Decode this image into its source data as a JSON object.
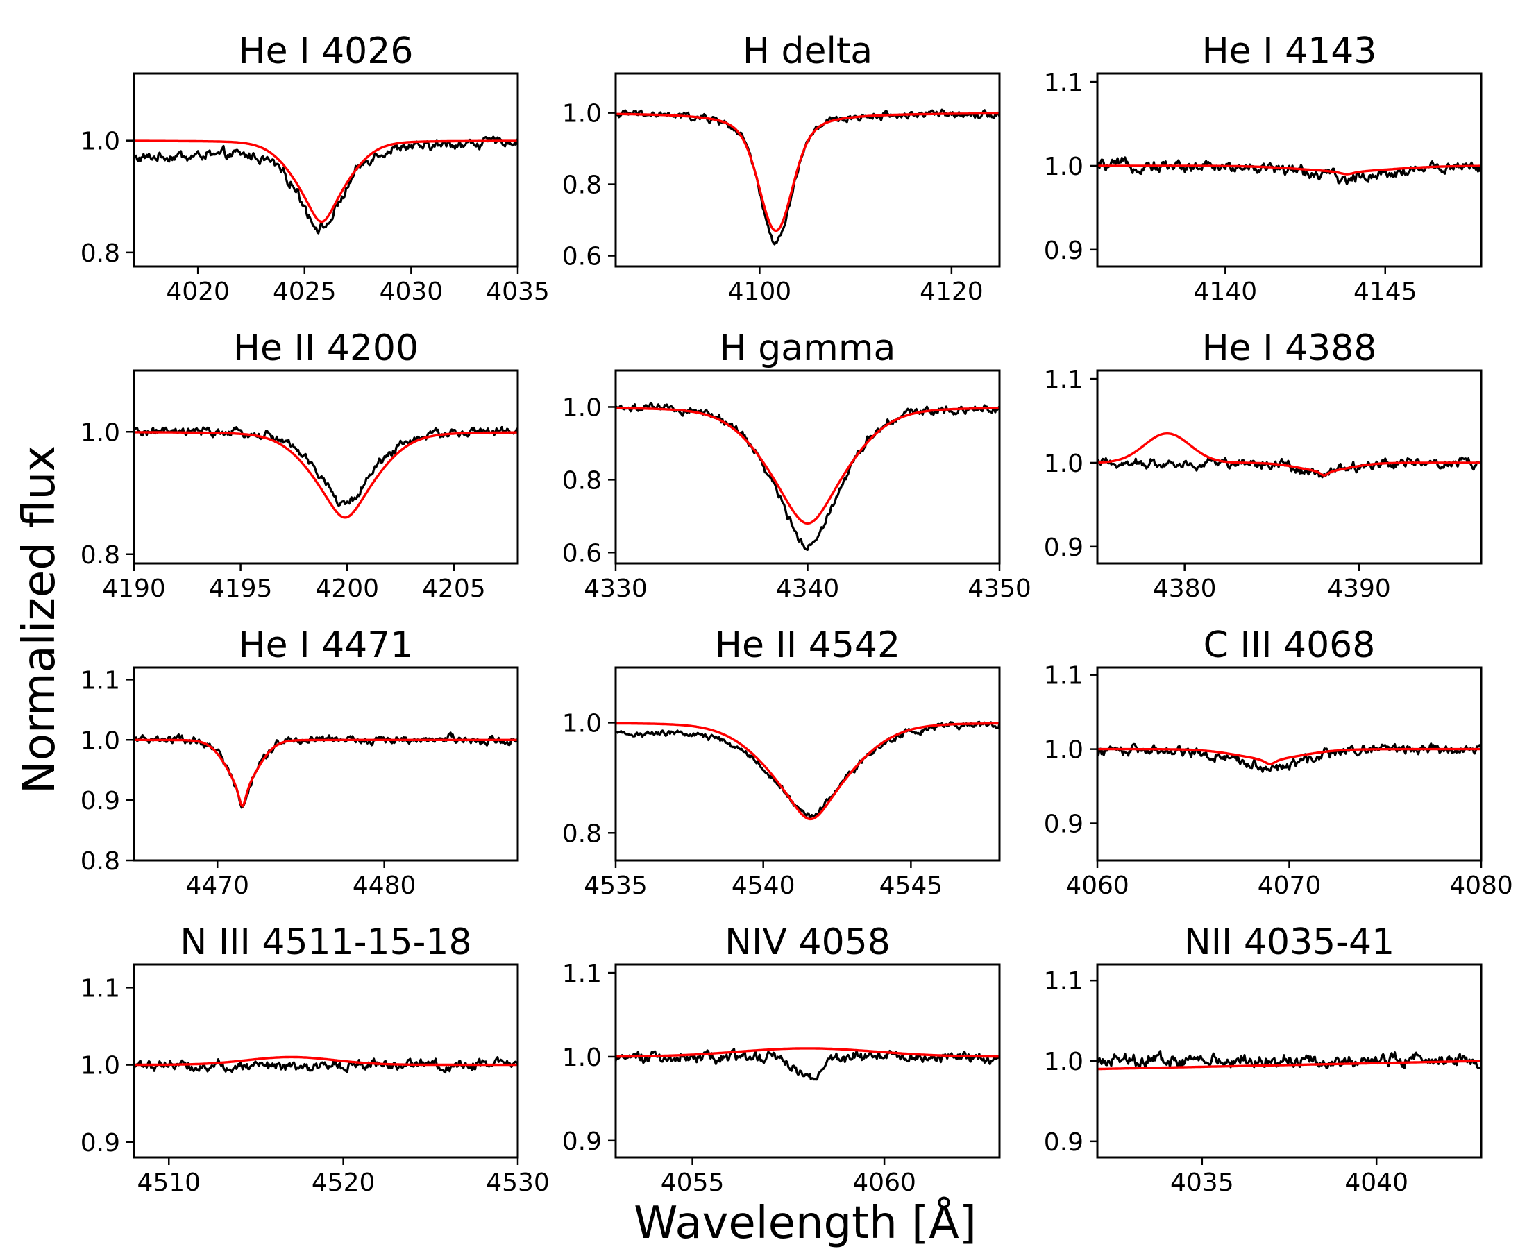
{
  "figure": {
    "xlabel": "Wavelength [Å]",
    "ylabel": "Normalized flux"
  },
  "colors": {
    "observed": "#000000",
    "model": "#ff0000",
    "axes": "#000000"
  },
  "chart_data": [
    {
      "type": "line",
      "title": "He I 4026",
      "xlim": [
        4017,
        4035
      ],
      "ylim": [
        0.775,
        1.12
      ],
      "xticks": [
        4020,
        4025,
        4030,
        4035
      ],
      "yticks": [
        0.8,
        1.0
      ],
      "line_center": 4025.8,
      "observed": {
        "kind": "absorption",
        "depth": 0.14,
        "sigma": 1.1,
        "gamma": 1.1,
        "noise": 0.008,
        "slope": 0.03
      },
      "model": {
        "kind": "absorption",
        "depth": 0.145,
        "sigma": 1.3,
        "gamma": 0.8
      }
    },
    {
      "type": "line",
      "title": "H delta",
      "xlim": [
        4085,
        4125
      ],
      "ylim": [
        0.57,
        1.11
      ],
      "xticks": [
        4100,
        4120
      ],
      "yticks": [
        0.6,
        0.8,
        1.0
      ],
      "line_center": 4101.7,
      "observed": {
        "kind": "absorption",
        "depth": 0.36,
        "sigma": 1.6,
        "gamma": 2.6,
        "noise": 0.009,
        "slope": 0
      },
      "model": {
        "kind": "absorption",
        "depth": 0.33,
        "sigma": 1.7,
        "gamma": 2.6
      }
    },
    {
      "type": "line",
      "title": "He I 4143",
      "xlim": [
        4136,
        4148
      ],
      "ylim": [
        0.88,
        1.11
      ],
      "xticks": [
        4140,
        4145
      ],
      "yticks": [
        0.9,
        1.0,
        1.1
      ],
      "line_center": 4143.8,
      "observed": {
        "kind": "absorption",
        "depth": 0.016,
        "sigma": 1.6,
        "gamma": 0.5,
        "noise": 0.006,
        "slope": 0
      },
      "model": {
        "kind": "absorption",
        "depth": 0.01,
        "sigma": 1.5,
        "gamma": 0.3
      }
    },
    {
      "type": "line",
      "title": "He II 4200",
      "xlim": [
        4190,
        4208
      ],
      "ylim": [
        0.785,
        1.1
      ],
      "xticks": [
        4190,
        4195,
        4200,
        4205
      ],
      "yticks": [
        0.8,
        1.0
      ],
      "line_center": 4199.9,
      "observed": {
        "kind": "absorption",
        "depth": 0.12,
        "sigma": 1.5,
        "gamma": 0.9,
        "noise": 0.006,
        "slope": 0
      },
      "model": {
        "kind": "absorption",
        "depth": 0.14,
        "sigma": 1.6,
        "gamma": 1.1
      }
    },
    {
      "type": "line",
      "title": "H gamma",
      "xlim": [
        4330,
        4350
      ],
      "ylim": [
        0.57,
        1.1
      ],
      "xticks": [
        4330,
        4340,
        4350
      ],
      "yticks": [
        0.6,
        0.8,
        1.0
      ],
      "line_center": 4340.0,
      "observed": {
        "kind": "absorption",
        "depth": 0.38,
        "sigma": 2.0,
        "gamma": 1.4,
        "noise": 0.01,
        "slope": 0
      },
      "model": {
        "kind": "absorption",
        "depth": 0.32,
        "sigma": 2.2,
        "gamma": 1.6
      }
    },
    {
      "type": "line",
      "title": "He I 4388",
      "xlim": [
        4375,
        4397
      ],
      "ylim": [
        0.88,
        1.11
      ],
      "xticks": [
        4380,
        4390
      ],
      "yticks": [
        0.9,
        1.0,
        1.1
      ],
      "line_center": 4388.0,
      "observed": {
        "kind": "absorption",
        "depth": 0.015,
        "sigma": 1.5,
        "gamma": 0.4,
        "noise": 0.005,
        "slope": 0
      },
      "model": {
        "kind": "absorption",
        "depth": 0.015,
        "sigma": 1.5,
        "gamma": 0.3,
        "bump_center": 4379,
        "bump_height": 0.035,
        "bump_sigma": 1.3
      }
    },
    {
      "type": "line",
      "title": "He I 4471",
      "xlim": [
        4465,
        4488
      ],
      "ylim": [
        0.8,
        1.12
      ],
      "xticks": [
        4470,
        4480
      ],
      "yticks": [
        0.8,
        0.9,
        1.0,
        1.1
      ],
      "line_center": 4471.5,
      "observed": {
        "kind": "absorption",
        "depth": 0.11,
        "sigma": 1.0,
        "gamma": 0.3,
        "noise": 0.006,
        "slope": 0
      },
      "model": {
        "kind": "absorption",
        "depth": 0.11,
        "sigma": 1.0,
        "gamma": 0.3
      }
    },
    {
      "type": "line",
      "title": "He II 4542",
      "xlim": [
        4535,
        4548
      ],
      "ylim": [
        0.75,
        1.1
      ],
      "xticks": [
        4535,
        4540,
        4545
      ],
      "yticks": [
        0.8,
        1.0
      ],
      "line_center": 4541.6,
      "observed": {
        "kind": "absorption",
        "depth": 0.16,
        "sigma": 1.5,
        "gamma": 0.9,
        "noise": 0.005,
        "slope": 0.02
      },
      "model": {
        "kind": "absorption",
        "depth": 0.175,
        "sigma": 1.5,
        "gamma": 0.9
      }
    },
    {
      "type": "line",
      "title": "C III 4068",
      "xlim": [
        4060,
        4080
      ],
      "ylim": [
        0.85,
        1.11
      ],
      "xticks": [
        4060,
        4070,
        4080
      ],
      "yticks": [
        0.9,
        1.0,
        1.1
      ],
      "line_center": 4069.0,
      "observed": {
        "kind": "absorption",
        "depth": 0.03,
        "sigma": 2.0,
        "gamma": 0.6,
        "noise": 0.006,
        "slope": 0
      },
      "model": {
        "kind": "absorption",
        "depth": 0.02,
        "sigma": 1.8,
        "gamma": 0.4
      }
    },
    {
      "type": "line",
      "title": "N III 4511-15-18",
      "xlim": [
        4508,
        4530
      ],
      "ylim": [
        0.88,
        1.13
      ],
      "xticks": [
        4510,
        4520,
        4530
      ],
      "yticks": [
        0.9,
        1.0,
        1.1
      ],
      "line_center": 4517.0,
      "observed": {
        "kind": "flat",
        "depth": -0.006,
        "sigma": 3.0,
        "gamma": 0,
        "noise": 0.006,
        "slope": 0
      },
      "model": {
        "kind": "emission",
        "depth": -0.01,
        "sigma": 2.5,
        "gamma": 0
      }
    },
    {
      "type": "line",
      "title": "NIV 4058",
      "xlim": [
        4053,
        4063
      ],
      "ylim": [
        0.88,
        1.11
      ],
      "xticks": [
        4055,
        4060
      ],
      "yticks": [
        0.9,
        1.0,
        1.1
      ],
      "line_center": 4058.0,
      "observed": {
        "kind": "absorption",
        "depth": 0.025,
        "sigma": 0.35,
        "gamma": 0,
        "noise": 0.006,
        "slope": 0
      },
      "model": {
        "kind": "emission",
        "depth": -0.01,
        "sigma": 1.8,
        "gamma": 0
      }
    },
    {
      "type": "line",
      "title": "NII 4035-41",
      "xlim": [
        4032,
        4043
      ],
      "ylim": [
        0.88,
        1.12
      ],
      "xticks": [
        4035,
        4040
      ],
      "yticks": [
        0.9,
        1.0,
        1.1
      ],
      "line_center": 4037.0,
      "observed": {
        "kind": "flat",
        "depth": 0,
        "sigma": 1,
        "gamma": 0,
        "noise": 0.007,
        "slope": 0
      },
      "model": {
        "kind": "flat",
        "depth": 0,
        "sigma": 1,
        "gamma": 0,
        "slope": 0.01
      }
    }
  ]
}
